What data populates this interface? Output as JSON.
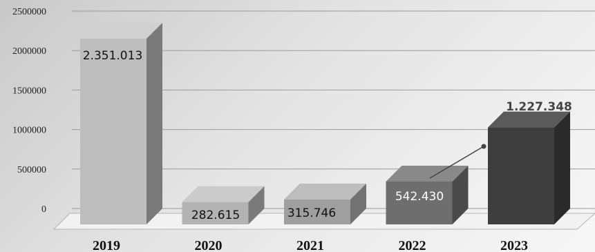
{
  "chart_data": {
    "type": "bar",
    "title": "",
    "xlabel": "",
    "ylabel": "",
    "categories": [
      "2019",
      "2020",
      "2021",
      "2022",
      "2023"
    ],
    "values": [
      2351013,
      282615,
      315746,
      542430,
      1227348
    ],
    "value_labels": [
      "2.351.013",
      "282.615",
      "315.746",
      "542.430",
      "1.227.348"
    ],
    "y_ticks": [
      "0",
      "500000",
      "1000000",
      "1500000",
      "2000000",
      "2500000"
    ],
    "ylim": [
      0,
      2500000
    ],
    "grid": true,
    "style": "3d-columns",
    "colors": {
      "bars_front": [
        "#bdbdbd",
        "#b3b3b3",
        "#9f9f9f",
        "#6e6e6e",
        "#3e3e3e"
      ],
      "bars_side": [
        "#7a7a7a",
        "#7a7a7a",
        "#727272",
        "#4a4a4a",
        "#2a2a2a"
      ],
      "bars_top": [
        "#d0d0d0",
        "#cbcbcb",
        "#bdbdbd",
        "#8a8a8a",
        "#5a5a5a"
      ],
      "label_text": [
        "#111111",
        "#111111",
        "#111111",
        "#ffffff",
        "#444444"
      ],
      "gridline": "#9a9a9a",
      "floor": "#f2f2f2"
    }
  }
}
